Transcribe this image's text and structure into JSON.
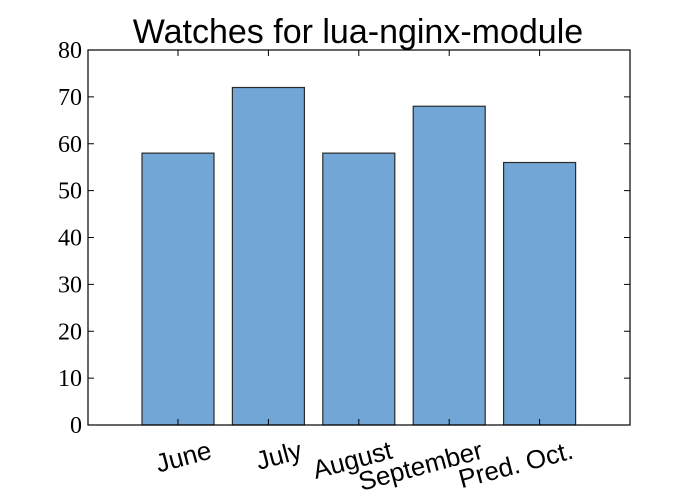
{
  "chart_data": {
    "type": "bar",
    "title": "Watches for lua-nginx-module",
    "categories": [
      "June",
      "July",
      "August",
      "September",
      "Pred. Oct."
    ],
    "values": [
      58,
      72,
      58,
      68,
      56
    ],
    "ylim": [
      0,
      80
    ],
    "yticks": [
      0,
      10,
      20,
      30,
      40,
      50,
      60,
      70,
      80
    ],
    "xlabel": "",
    "ylabel": "",
    "grid": false,
    "bar_color": "#72a6d6",
    "bar_edge_color": "#2b2b2b"
  }
}
